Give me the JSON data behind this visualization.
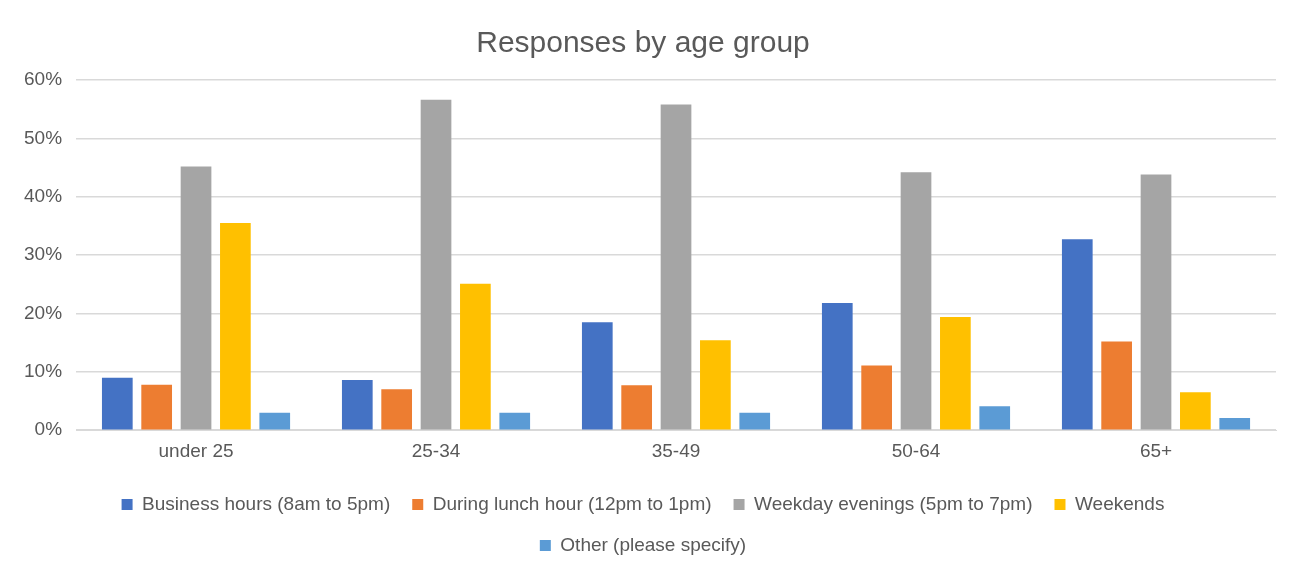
{
  "chart_data": {
    "type": "bar",
    "title": "Responses by age group",
    "categories": [
      "under 25",
      "25-34",
      "35-49",
      "50-64",
      "65+"
    ],
    "series": [
      {
        "name": "Business hours (8am to 5pm)",
        "color": "#4472c4",
        "values": [
          9.0,
          8.6,
          18.5,
          21.8,
          32.7
        ]
      },
      {
        "name": "During lunch hour (12pm to 1pm)",
        "color": "#ed7d31",
        "values": [
          7.8,
          7.0,
          7.7,
          11.1,
          15.2
        ]
      },
      {
        "name": "Weekday evenings (5pm to 7pm)",
        "color": "#a5a5a5",
        "values": [
          45.2,
          56.6,
          55.8,
          44.2,
          43.8
        ]
      },
      {
        "name": "Weekends",
        "color": "#ffc000",
        "values": [
          35.5,
          25.1,
          15.4,
          19.4,
          6.5
        ]
      },
      {
        "name": "Other (please specify)",
        "color": "#5b9bd5",
        "values": [
          3.0,
          3.0,
          3.0,
          4.1,
          2.1
        ]
      }
    ],
    "ylim": [
      0,
      60
    ],
    "yticks": [
      {
        "value": 0,
        "label": "0%"
      },
      {
        "value": 10,
        "label": "10%"
      },
      {
        "value": 20,
        "label": "20%"
      },
      {
        "value": 30,
        "label": "30%"
      },
      {
        "value": 40,
        "label": "40%"
      },
      {
        "value": 50,
        "label": "50%"
      },
      {
        "value": 60,
        "label": "60%"
      }
    ],
    "grid": "y",
    "legend": "bottom"
  }
}
